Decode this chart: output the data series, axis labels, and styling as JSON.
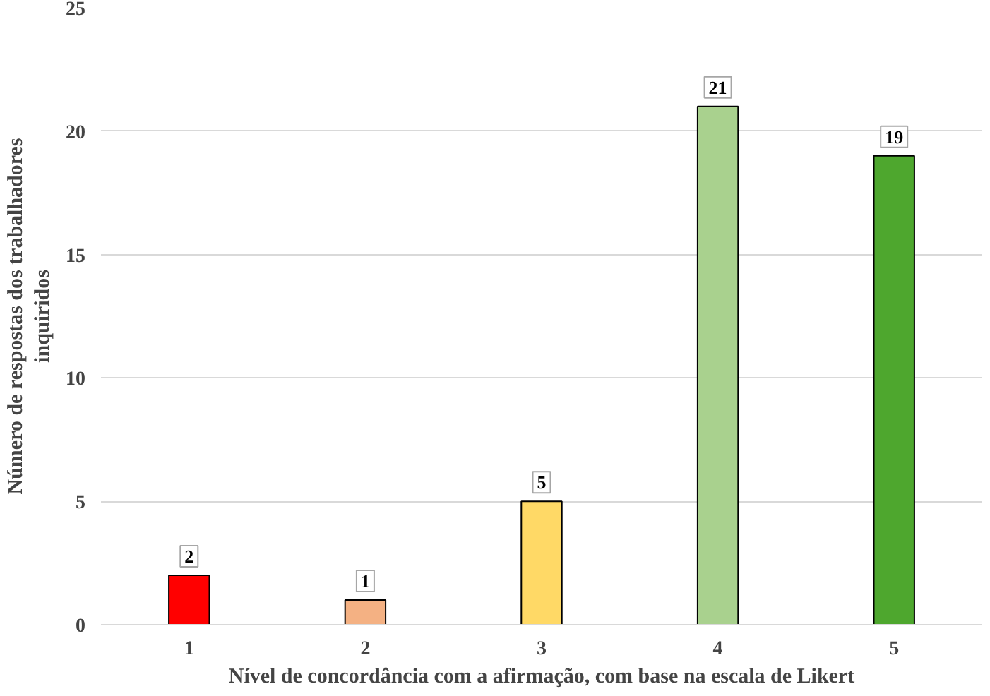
{
  "chart_data": {
    "type": "bar",
    "xlabel": "Nível de concordância com a afirmação, com base na escala de Likert",
    "ylabel": "Número de respostas dos trabalhadores inquiridos",
    "categories": [
      "1",
      "2",
      "3",
      "4",
      "5"
    ],
    "values": [
      2,
      1,
      5,
      21,
      19
    ],
    "colors": [
      "#ff0000",
      "#f4b183",
      "#ffd966",
      "#a9d18e",
      "#4ea72e"
    ],
    "ylim": [
      0,
      25
    ],
    "yticks": [
      0,
      5,
      10,
      15,
      20,
      25
    ],
    "grid": "y",
    "data_labels": true
  }
}
